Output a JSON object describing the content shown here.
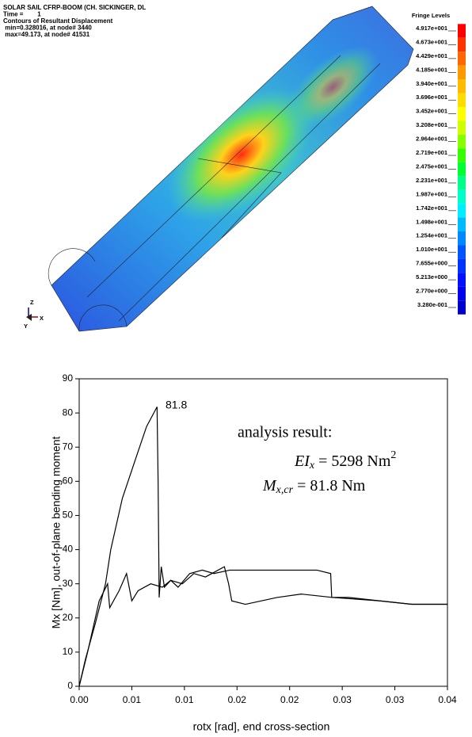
{
  "contour_plot": {
    "header": [
      "SOLAR SAIL CFRP-BOOM (CH. SICKINGER, DL",
      "Time =        1",
      "Contours of Resultant Displacement",
      " min=0.328016, at node# 3440",
      " max=49.173, at node# 41531"
    ],
    "fringe_title": "Fringe Levels",
    "fringe_levels": [
      {
        "value": 49.17,
        "label": "4.917e+001"
      },
      {
        "value": 46.73,
        "label": "4.673e+001"
      },
      {
        "value": 44.29,
        "label": "4.429e+001"
      },
      {
        "value": 41.85,
        "label": "4.185e+001"
      },
      {
        "value": 39.4,
        "label": "3.940e+001"
      },
      {
        "value": 36.96,
        "label": "3.696e+001"
      },
      {
        "value": 34.52,
        "label": "3.452e+001"
      },
      {
        "value": 32.08,
        "label": "3.208e+001"
      },
      {
        "value": 29.64,
        "label": "2.964e+001"
      },
      {
        "value": 27.19,
        "label": "2.719e+001"
      },
      {
        "value": 24.75,
        "label": "2.475e+001"
      },
      {
        "value": 22.31,
        "label": "2.231e+001"
      },
      {
        "value": 19.87,
        "label": "1.987e+001"
      },
      {
        "value": 17.42,
        "label": "1.742e+001"
      },
      {
        "value": 14.98,
        "label": "1.498e+001"
      },
      {
        "value": 12.54,
        "label": "1.254e+001"
      },
      {
        "value": 10.1,
        "label": "1.010e+001"
      },
      {
        "value": 7.655,
        "label": "7.655e+000"
      },
      {
        "value": 5.213,
        "label": "5.213e+000"
      },
      {
        "value": 2.77,
        "label": "2.770e+000"
      },
      {
        "value": 0.328,
        "label": "3.280e-001"
      }
    ],
    "fringe_colors": [
      "#ff0000",
      "#ff3300",
      "#ff6600",
      "#ff9900",
      "#ffbb00",
      "#ffdd00",
      "#ffff00",
      "#ccff00",
      "#88ff00",
      "#33ff00",
      "#00ff33",
      "#00ff88",
      "#00ffcc",
      "#00eeff",
      "#00bbff",
      "#0088ff",
      "#0055ff",
      "#0033ff",
      "#0011ff",
      "#0000ee",
      "#0000cc"
    ],
    "axis_triad": [
      "Z",
      "X",
      "Y"
    ]
  },
  "chart_data": {
    "type": "line",
    "xlabel": "rotx [rad], end cross-section",
    "ylabel": "Mx [Nm], out-of-plane bending moment",
    "xlim": [
      0,
      0.035
    ],
    "ylim": [
      0,
      90
    ],
    "xticks": [
      {
        "value": 0,
        "label": "0.00"
      },
      {
        "value": 0.005,
        "label": "0.01"
      },
      {
        "value": 0.01,
        "label": "0.01"
      },
      {
        "value": 0.015,
        "label": "0.02"
      },
      {
        "value": 0.02,
        "label": "0.02"
      },
      {
        "value": 0.025,
        "label": "0.03"
      },
      {
        "value": 0.03,
        "label": "0.03"
      },
      {
        "value": 0.035,
        "label": "0.04"
      }
    ],
    "yticks": [
      0,
      10,
      20,
      30,
      40,
      50,
      60,
      70,
      80,
      90
    ],
    "series": [
      {
        "color": "#000000",
        "x": [
          0,
          0.0006,
          0.0015,
          0.0025,
          0.003,
          0.0041,
          0.0053,
          0.0064,
          0.0074,
          0.0075,
          0.0076,
          0.0078,
          0.0081,
          0.0087,
          0.0098,
          0.0109,
          0.012,
          0.0132,
          0.0138,
          0.0142,
          0.0145,
          0.0158,
          0.0188,
          0.0211,
          0.0241,
          0.0263,
          0.0286,
          0.0301,
          0.0316,
          0.035
        ],
        "values": [
          0,
          8,
          18,
          30,
          40,
          55,
          66,
          76,
          81.8,
          60,
          26,
          35,
          29,
          31,
          30,
          33,
          32,
          34,
          35,
          30,
          25,
          24,
          26,
          27,
          26,
          25.5,
          25,
          24.5,
          24,
          24
        ]
      },
      {
        "color": "#000000",
        "x": [
          0,
          0.0008,
          0.0019,
          0.0027,
          0.0029,
          0.0038,
          0.0045,
          0.005,
          0.0056,
          0.0068,
          0.0079,
          0.0087,
          0.0094,
          0.0105,
          0.0117,
          0.0128,
          0.0143,
          0.0166,
          0.0196,
          0.0226,
          0.0239,
          0.024,
          0.0256,
          0.0286,
          0.0316,
          0.035
        ],
        "values": [
          0,
          10,
          25,
          30,
          23,
          28,
          33,
          25,
          28,
          30,
          29,
          31,
          29,
          33,
          34,
          33,
          34,
          34,
          34,
          34,
          33,
          26,
          26,
          25,
          24,
          24
        ]
      }
    ],
    "annotations": {
      "peak_label": "81.8",
      "heading": "analysis result:",
      "ei_equation": [
        "EI",
        "x",
        " = 5298 Nm",
        "2"
      ],
      "m_equation": [
        "M",
        "x,cr",
        " = 81.8 Nm"
      ]
    }
  }
}
